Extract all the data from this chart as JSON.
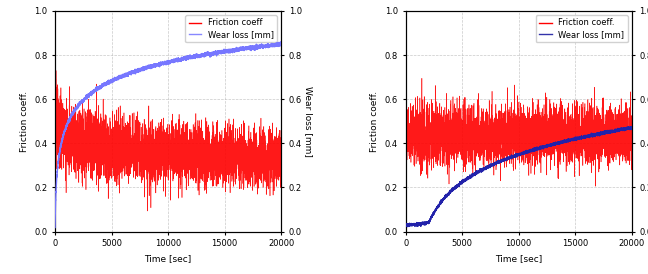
{
  "xlim": [
    0,
    20000
  ],
  "ylim_left": [
    0.0,
    1.0
  ],
  "ylim_right": [
    0.0,
    1.0
  ],
  "xticks": [
    0,
    5000,
    10000,
    15000,
    20000
  ],
  "yticks_left": [
    0.0,
    0.2,
    0.4,
    0.6,
    0.8,
    1.0
  ],
  "yticks_right": [
    0.0,
    0.2,
    0.4,
    0.6,
    0.8,
    1.0
  ],
  "xlabel": "Time [sec]",
  "ylabel_left": "Friction coeff.",
  "ylabel_right": "Wear loss [mm]",
  "legend1": [
    "Friction coeff",
    "Wear loss [mm]"
  ],
  "legend1_colors": [
    "#ff0000",
    "#8888ff"
  ],
  "legend2": [
    "Friction coeff.",
    "Wear loss [mm]"
  ],
  "legend2_colors": [
    "#ff0000",
    "#3333aa"
  ],
  "red_color": "#ff0000",
  "blue_color1": "#7777ff",
  "blue_color2": "#2222aa",
  "grid_color": "#bbbbbb",
  "grid_style": "--",
  "grid_alpha": 0.8,
  "tick_fontsize": 6,
  "label_fontsize": 6.5,
  "legend_fontsize": 6
}
